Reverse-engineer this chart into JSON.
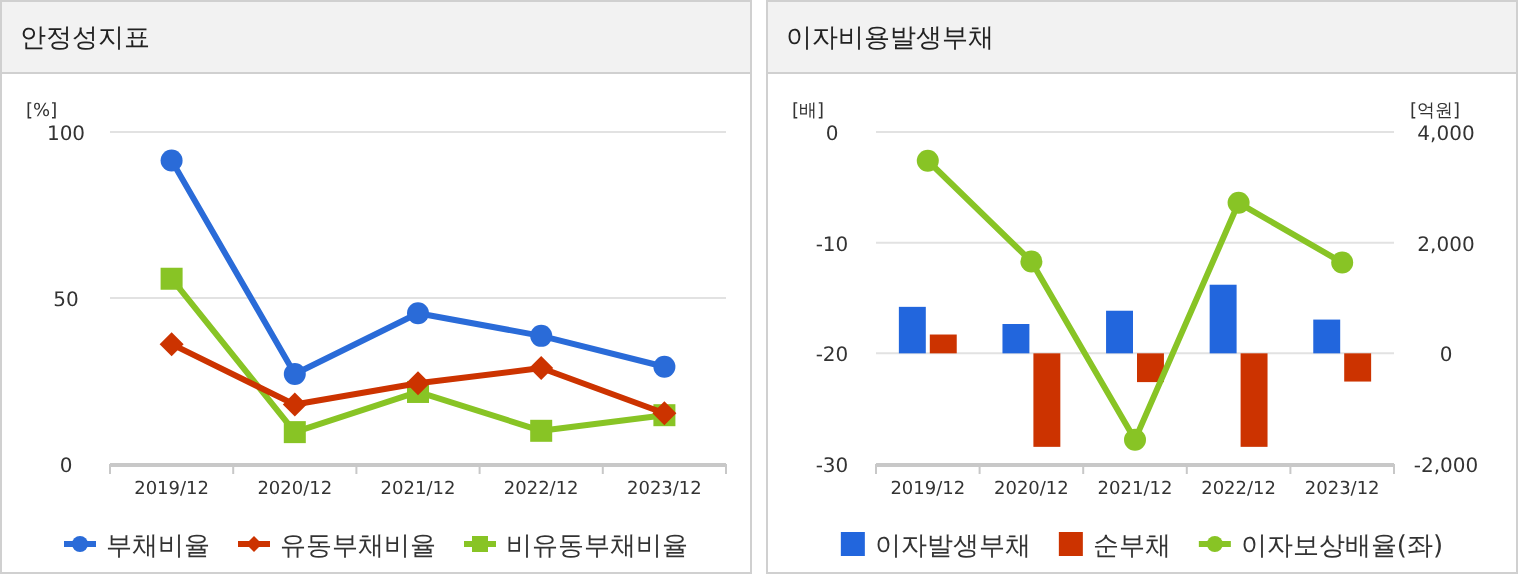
{
  "chart_data": [
    {
      "type": "line",
      "title": "안정성지표",
      "ylabel": "[%]",
      "categories": [
        "2019/12",
        "2020/12",
        "2021/12",
        "2022/12",
        "2023/12"
      ],
      "ylim": [
        0,
        100
      ],
      "yticks": [
        0,
        50,
        100
      ],
      "grid": "y",
      "legend": "bottom",
      "series": [
        {
          "name": "부채비율",
          "color": "#2a6bd8",
          "marker": "circle",
          "values": [
            91.4,
            27.1,
            45.4,
            38.6,
            29.3
          ]
        },
        {
          "name": "유동부채비율",
          "color": "#cc3300",
          "marker": "diamond",
          "values": [
            36.1,
            17.9,
            24.3,
            28.9,
            15.3
          ]
        },
        {
          "name": "비유동부채비율",
          "color": "#88c425",
          "marker": "square",
          "values": [
            55.8,
            9.6,
            21.7,
            10.0,
            14.7
          ]
        }
      ]
    },
    {
      "type": "bar",
      "title": "이자비용발생부채",
      "ylabel": "[배]",
      "y2label": "[억원]",
      "categories": [
        "2019/12",
        "2020/12",
        "2021/12",
        "2022/12",
        "2023/12"
      ],
      "ylim": [
        -30,
        0
      ],
      "yticks": [
        -30,
        -20,
        -10,
        0
      ],
      "y2lim": [
        -2000,
        4000
      ],
      "y2ticks": [
        {
          "value": -2000,
          "label": "-2,000"
        },
        0,
        {
          "value": 2000,
          "label": "2,000"
        },
        {
          "value": 4000,
          "label": "4,000"
        }
      ],
      "grid": "y",
      "legend": "bottom",
      "series": [
        {
          "name": "이자발생부채",
          "color": "#2266dd",
          "axis": "y2",
          "values": [
            840,
            530,
            770,
            1240,
            610
          ]
        },
        {
          "name": "순부채",
          "color": "#cc3300",
          "axis": "y2",
          "values": [
            340,
            -1690,
            -520,
            -1690,
            -510
          ]
        },
        {
          "name": "이자보상배율(좌)",
          "color": "#88c425",
          "type": "line",
          "marker": "circle",
          "axis": "y",
          "values": [
            -2.6,
            -11.7,
            -27.8,
            -6.4,
            -11.8
          ]
        }
      ]
    }
  ]
}
